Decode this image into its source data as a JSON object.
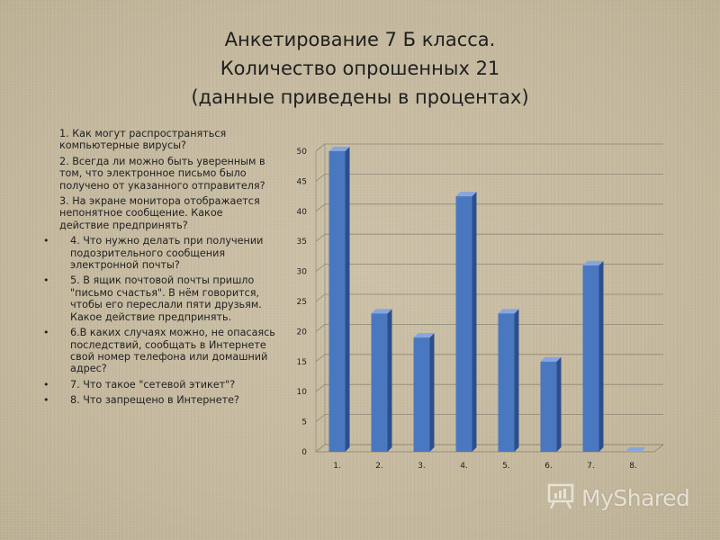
{
  "title": {
    "line1": "Анкетирование 7 Б класса.",
    "line2": "Количество опрошенных 21",
    "line3": "(данные приведены в процентах)"
  },
  "questions": [
    {
      "text": "1. Как могут распространяться компьютерные вирусы?",
      "bullet": false
    },
    {
      "text": "2. Всегда ли можно быть уверенным в том, что электронное письмо было получено от указанного отправителя?",
      "bullet": false
    },
    {
      "text": "3. На экране монитора отображается непонятное сообщение. Какое действие предпринять?",
      "bullet": false
    },
    {
      "text": "4. Что нужно делать при получении подозрительного сообщения электронной почты?",
      "bullet": true
    },
    {
      "text": "5. В ящик почтовой почты пришло \"письмо счастья\". В нём говорится, чтобы его переслали пяти друзьям. Какое действие предпринять.",
      "bullet": true
    },
    {
      "text": "6.В каких случаях можно, не опасаясь последствий, сообщать в Интернете свой номер телефона или домашний адрес?",
      "bullet": true
    },
    {
      "text": "7. Что такое \"сетевой этикет\"?",
      "bullet": true
    },
    {
      "text": "8. Что запрещено в Интернете?",
      "bullet": true
    }
  ],
  "chart_data": {
    "type": "bar",
    "categories": [
      "1.",
      "2.",
      "3.",
      "4.",
      "5.",
      "6.",
      "7.",
      "8."
    ],
    "values": [
      50,
      23,
      19,
      42.5,
      23,
      15,
      31,
      0
    ],
    "yticks": [
      0,
      5,
      10,
      15,
      20,
      25,
      30,
      35,
      40,
      45,
      50
    ],
    "ylim": [
      0,
      50
    ],
    "title": "",
    "xlabel": "",
    "ylabel": "",
    "grid": true,
    "legend": "none",
    "colors": {
      "bar_front": "#4a78c0",
      "bar_side": "#2c4f8c",
      "bar_top": "#86a6dc"
    }
  },
  "watermark": {
    "text": "MyShared",
    "icon": "presentation-board-icon"
  }
}
